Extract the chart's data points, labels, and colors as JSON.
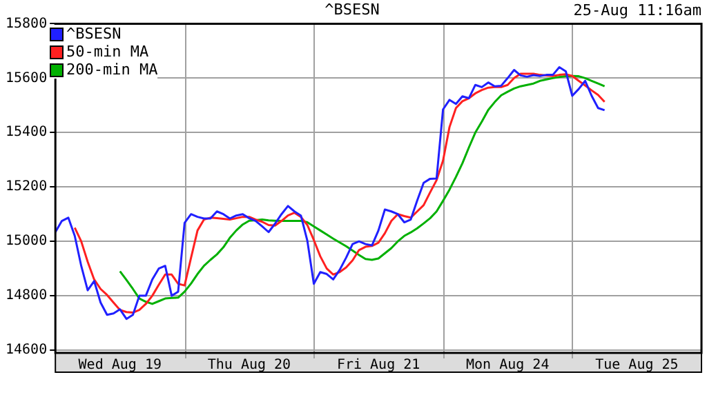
{
  "chart_data": {
    "type": "line",
    "title": "^BSESN",
    "annotations": [
      "25-Aug 11:16am"
    ],
    "categories": [
      null,
      null,
      null,
      null,
      null,
      null,
      null,
      null,
      null,
      null,
      "Wed Aug 19",
      null,
      null,
      null,
      null,
      null,
      null,
      null,
      null,
      null,
      null,
      null,
      null,
      null,
      null,
      null,
      null,
      null,
      null,
      null,
      "Thu Aug 20",
      null,
      null,
      null,
      null,
      null,
      null,
      null,
      null,
      null,
      null,
      null,
      null,
      null,
      null,
      null,
      null,
      null,
      null,
      null,
      "Fri Aug 21",
      null,
      null,
      null,
      null,
      null,
      null,
      null,
      null,
      null,
      null,
      null,
      null,
      null,
      null,
      null,
      null,
      null,
      null,
      null,
      "Mon Aug 24",
      null,
      null,
      null,
      null,
      null,
      null,
      null,
      null,
      null,
      null,
      null,
      null,
      null,
      null,
      null,
      null,
      null,
      null,
      null,
      "Tue Aug 25",
      null,
      null,
      null,
      null,
      null,
      null,
      null,
      null,
      null,
      null
    ],
    "ylim": [
      14590,
      15800
    ],
    "yticks": [
      14600,
      14800,
      15000,
      15200,
      15400,
      15600,
      15800
    ],
    "grid": true,
    "legend": "top left",
    "marker": "none",
    "line_style": "solid",
    "series": [
      {
        "name": "^BSESN",
        "color": "#2020ff",
        "values": [
          15034,
          15075,
          15087,
          15020,
          14910,
          14820,
          14854,
          14775,
          14730,
          14735,
          14750,
          14715,
          14730,
          14800,
          14800,
          14860,
          14900,
          14910,
          14800,
          14815,
          15068,
          15100,
          15090,
          15084,
          15084,
          15110,
          15100,
          15084,
          15095,
          15100,
          15085,
          15075,
          15055,
          15034,
          15065,
          15100,
          15130,
          15110,
          15095,
          15002,
          14844,
          14887,
          14880,
          14860,
          14895,
          14940,
          14990,
          15000,
          14990,
          14985,
          15040,
          15117,
          15110,
          15100,
          15070,
          15080,
          15150,
          15215,
          15230,
          15231,
          15485,
          15520,
          15505,
          15533,
          15526,
          15575,
          15567,
          15584,
          15570,
          15572,
          15600,
          15630,
          15610,
          15605,
          15611,
          15608,
          15612,
          15612,
          15640,
          15625,
          15535,
          15560,
          15590,
          15535,
          15490,
          15482,
          null,
          null,
          null,
          null,
          null,
          null,
          null,
          null,
          null,
          null,
          null,
          null,
          null,
          null,
          null
        ]
      },
      {
        "name": "50-min MA",
        "color": "#ff2020",
        "values": [
          null,
          null,
          null,
          15050,
          15000,
          14925,
          14860,
          14825,
          14803,
          14775,
          14748,
          14740,
          14738,
          14748,
          14770,
          14800,
          14840,
          14878,
          14878,
          14844,
          14838,
          14940,
          15040,
          15080,
          15087,
          15085,
          15083,
          15080,
          15085,
          15090,
          15090,
          15080,
          15072,
          15060,
          15058,
          15075,
          15095,
          15105,
          15090,
          15060,
          15005,
          14945,
          14900,
          14878,
          14887,
          14904,
          14930,
          14968,
          14980,
          14983,
          14995,
          15030,
          15075,
          15100,
          15093,
          15087,
          15110,
          15133,
          15180,
          15225,
          15297,
          15420,
          15490,
          15515,
          15526,
          15544,
          15556,
          15565,
          15567,
          15567,
          15575,
          15600,
          15616,
          15616,
          15616,
          15612,
          15610,
          15608,
          15612,
          15614,
          15608,
          15590,
          15573,
          15555,
          15538,
          15513,
          null,
          null,
          null,
          null,
          null,
          null,
          null,
          null,
          null,
          null,
          null,
          null,
          null,
          null,
          null
        ]
      },
      {
        "name": "200-min MA",
        "color": "#00b000",
        "values": [
          null,
          null,
          null,
          null,
          null,
          null,
          null,
          null,
          null,
          null,
          14890,
          14858,
          14825,
          14790,
          14778,
          14770,
          14780,
          14790,
          14792,
          14793,
          14815,
          14845,
          14880,
          14910,
          14932,
          14952,
          14978,
          15013,
          15040,
          15062,
          15076,
          15078,
          15080,
          15077,
          15076,
          15075,
          15075,
          15075,
          15075,
          15070,
          15055,
          15040,
          15025,
          15010,
          14996,
          14982,
          14966,
          14950,
          14935,
          14932,
          14937,
          14956,
          14975,
          15000,
          15020,
          15033,
          15048,
          15066,
          15085,
          15110,
          15149,
          15190,
          15237,
          15287,
          15345,
          15400,
          15440,
          15483,
          15512,
          15537,
          15550,
          15562,
          15570,
          15575,
          15580,
          15590,
          15595,
          15600,
          15604,
          15607,
          15608,
          15607,
          15600,
          15590,
          15580,
          15570,
          null,
          null,
          null,
          null,
          null,
          null,
          null,
          null,
          null,
          null,
          null,
          null,
          null,
          null,
          null
        ]
      }
    ]
  }
}
